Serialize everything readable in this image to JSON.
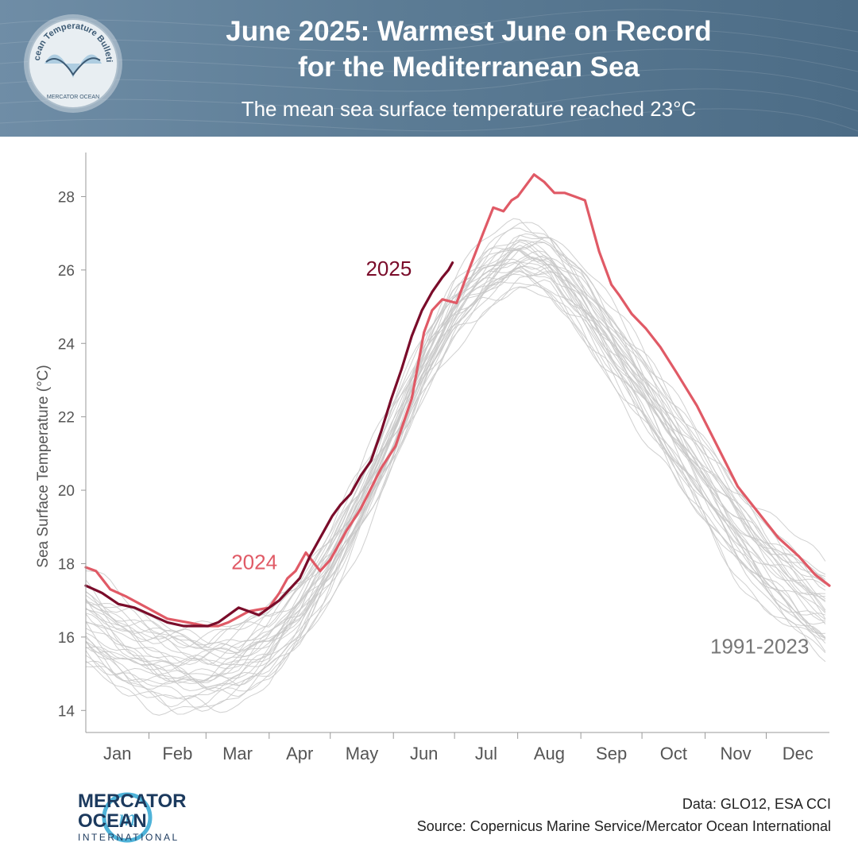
{
  "header": {
    "title_line1": "June 2025: Warmest June on Record",
    "title_line2": "for the Mediterranean Sea",
    "subtitle": "The mean sea surface temperature reached 23°C",
    "badge_text": "Ocean Temperature Bulletin",
    "badge_org": "MERCATOR OCEAN"
  },
  "colors": {
    "header_bg": "#5c7c95",
    "line_2024": "#e05a66",
    "line_2025": "#7a0c2a",
    "climatology": "#c8c8c8",
    "brand": "#1c3a5e",
    "logo_accent": "#4fb3d9"
  },
  "chart_data": {
    "type": "line",
    "title": "June 2025: Warmest June on Record for the Mediterranean Sea",
    "xlabel": "",
    "ylabel": "Sea Surface Temperature (°C)",
    "xlim": [
      0,
      365
    ],
    "ylim": [
      13.4,
      29.2
    ],
    "yticks": [
      14,
      16,
      18,
      20,
      22,
      24,
      26,
      28
    ],
    "month_labels": [
      "Jan",
      "Feb",
      "Mar",
      "Apr",
      "May",
      "Jun",
      "Jul",
      "Aug",
      "Sep",
      "Oct",
      "Nov",
      "Dec"
    ],
    "month_boundaries": [
      0,
      31,
      59,
      90,
      120,
      151,
      181,
      212,
      243,
      273,
      304,
      334,
      365
    ],
    "climatology_label": "1991-2023",
    "climatology_years": 33,
    "climatology_mean": {
      "day": [
        0,
        15,
        31,
        45,
        59,
        75,
        90,
        105,
        120,
        135,
        151,
        166,
        181,
        196,
        212,
        227,
        243,
        258,
        273,
        288,
        304,
        319,
        334,
        350,
        365
      ],
      "sst": [
        16.4,
        15.8,
        15.4,
        15.2,
        15.1,
        15.3,
        15.8,
        16.7,
        18.0,
        19.6,
        21.5,
        23.4,
        24.9,
        25.8,
        26.4,
        26.2,
        25.2,
        24.0,
        22.8,
        21.5,
        20.2,
        19.0,
        18.0,
        17.2,
        16.6
      ]
    },
    "series": [
      {
        "name": "2024",
        "day": [
          0,
          5,
          12,
          20,
          30,
          40,
          50,
          59,
          65,
          70,
          80,
          90,
          95,
          99,
          103,
          108,
          115,
          120,
          128,
          135,
          145,
          152,
          160,
          166,
          170,
          175,
          182,
          188,
          195,
          200,
          205,
          209,
          212,
          216,
          220,
          225,
          230,
          235,
          240,
          245,
          252,
          258,
          262,
          268,
          275,
          282,
          290,
          300,
          310,
          320,
          330,
          340,
          350,
          358,
          365
        ],
        "sst": [
          17.9,
          17.8,
          17.3,
          17.1,
          16.8,
          16.5,
          16.4,
          16.3,
          16.3,
          16.4,
          16.7,
          16.8,
          17.2,
          17.6,
          17.8,
          18.3,
          17.8,
          18.1,
          18.9,
          19.5,
          20.6,
          21.2,
          22.5,
          24.3,
          24.9,
          25.2,
          25.1,
          26.0,
          27.0,
          27.7,
          27.6,
          27.9,
          28.0,
          28.3,
          28.6,
          28.4,
          28.1,
          28.1,
          28.0,
          27.9,
          26.5,
          25.6,
          25.3,
          24.8,
          24.4,
          23.9,
          23.2,
          22.3,
          21.2,
          20.1,
          19.4,
          18.7,
          18.2,
          17.7,
          17.4
        ]
      },
      {
        "name": "2025",
        "day": [
          0,
          8,
          16,
          24,
          32,
          40,
          48,
          55,
          60,
          65,
          70,
          75,
          80,
          85,
          90,
          95,
          100,
          105,
          110,
          115,
          118,
          121,
          125,
          130,
          135,
          140,
          145,
          150,
          155,
          160,
          165,
          170,
          175,
          178,
          180
        ],
        "sst": [
          17.4,
          17.2,
          16.9,
          16.8,
          16.6,
          16.4,
          16.3,
          16.3,
          16.3,
          16.4,
          16.6,
          16.8,
          16.7,
          16.6,
          16.8,
          17.0,
          17.3,
          17.6,
          18.2,
          18.7,
          19.0,
          19.3,
          19.6,
          19.9,
          20.4,
          20.8,
          21.6,
          22.5,
          23.3,
          24.2,
          24.9,
          25.4,
          25.8,
          26.0,
          26.2
        ]
      }
    ],
    "annotations": [
      "2025",
      "2024",
      "1991-2023"
    ]
  },
  "footer": {
    "brand_line1": "MERCATOR",
    "brand_line2": "OCEAN",
    "brand_line3": "INTERNATIONAL",
    "data_credit": "Data: GLO12, ESA CCI",
    "source_credit": "Source: Copernicus Marine Service/Mercator Ocean International"
  }
}
